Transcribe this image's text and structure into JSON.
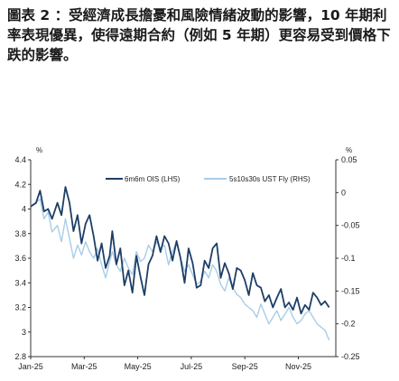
{
  "caption": "圖表 2 ：受經濟成長擔憂和風險情緒波動的影響，10 年期利率表現優異，使得遠期合約（例如 5 年期）更容易受到價格下跌的影響。",
  "chart_data": {
    "type": "line",
    "title": "",
    "left_unit": "%",
    "right_unit": "%",
    "left_axis": {
      "min": 2.8,
      "max": 4.4,
      "ticks": [
        "2.8",
        "3",
        "3.2",
        "3.4",
        "3.6",
        "3.8",
        "4",
        "4.2",
        "4.4"
      ]
    },
    "right_axis": {
      "min": -0.25,
      "max": 0.05,
      "ticks": [
        "0.05",
        "0",
        "-0.05",
        "-0.1",
        "-0.15",
        "-0.2",
        "-0.25"
      ]
    },
    "x_ticks": [
      "Jan-25",
      "Mar-25",
      "May-25",
      "Jul-25",
      "Sep-25",
      "Nov-25"
    ],
    "x_tick_positions": [
      0,
      2,
      4,
      6,
      8,
      10
    ],
    "x_range": [
      0,
      11.4
    ],
    "colors": {
      "ois": "#1d3f66",
      "fly": "#a9cde6"
    },
    "series": [
      {
        "name": "6m6m OIS (LHS)",
        "axis": "left",
        "x": [
          0,
          0.2,
          0.35,
          0.5,
          0.65,
          0.8,
          1.0,
          1.15,
          1.3,
          1.45,
          1.6,
          1.75,
          1.9,
          2.05,
          2.2,
          2.35,
          2.5,
          2.65,
          2.8,
          2.95,
          3.05,
          3.2,
          3.35,
          3.5,
          3.65,
          3.8,
          3.95,
          4.1,
          4.25,
          4.4,
          4.55,
          4.7,
          4.85,
          5.0,
          5.15,
          5.3,
          5.45,
          5.6,
          5.75,
          5.9,
          6.05,
          6.2,
          6.35,
          6.5,
          6.65,
          6.8,
          6.95,
          7.1,
          7.25,
          7.4,
          7.55,
          7.7,
          7.85,
          8.0,
          8.15,
          8.3,
          8.45,
          8.6,
          8.75,
          8.9,
          9.05,
          9.2,
          9.35,
          9.5,
          9.65,
          9.8,
          9.95,
          10.1,
          10.25,
          10.4,
          10.55,
          10.7,
          10.85,
          11.0,
          11.15
        ],
        "values": [
          4.02,
          4.05,
          4.15,
          3.98,
          4.0,
          3.92,
          4.05,
          3.95,
          4.18,
          4.05,
          3.82,
          3.95,
          3.72,
          3.88,
          3.95,
          3.78,
          3.58,
          3.72,
          3.52,
          3.62,
          3.82,
          3.55,
          3.68,
          3.38,
          3.5,
          3.32,
          3.62,
          3.45,
          3.3,
          3.55,
          3.62,
          3.78,
          3.65,
          3.78,
          3.72,
          3.58,
          3.74,
          3.6,
          3.4,
          3.68,
          3.56,
          3.36,
          3.38,
          3.58,
          3.52,
          3.68,
          3.72,
          3.44,
          3.56,
          3.48,
          3.35,
          3.52,
          3.5,
          3.42,
          3.3,
          3.48,
          3.38,
          3.36,
          3.25,
          3.3,
          3.2,
          3.28,
          3.35,
          3.2,
          3.24,
          3.18,
          3.28,
          3.15,
          3.22,
          3.18,
          3.32,
          3.28,
          3.22,
          3.25,
          3.2
        ]
      },
      {
        "name": "5s10s30s UST Fly (RHS)",
        "axis": "right",
        "x": [
          0,
          0.2,
          0.35,
          0.5,
          0.65,
          0.8,
          1.0,
          1.15,
          1.3,
          1.45,
          1.6,
          1.75,
          1.9,
          2.05,
          2.2,
          2.35,
          2.5,
          2.65,
          2.8,
          2.95,
          3.05,
          3.2,
          3.35,
          3.5,
          3.65,
          3.8,
          3.95,
          4.1,
          4.25,
          4.4,
          4.55,
          4.7,
          4.85,
          5.0,
          5.15,
          5.3,
          5.45,
          5.6,
          5.75,
          5.9,
          6.05,
          6.2,
          6.35,
          6.5,
          6.65,
          6.8,
          6.95,
          7.1,
          7.25,
          7.4,
          7.55,
          7.7,
          7.85,
          8.0,
          8.15,
          8.3,
          8.45,
          8.6,
          8.75,
          8.9,
          9.05,
          9.2,
          9.35,
          9.5,
          9.65,
          9.8,
          9.95,
          10.1,
          10.25,
          10.4,
          10.55,
          10.7,
          10.85,
          11.0,
          11.15
        ],
        "values": [
          -0.02,
          -0.015,
          -0.01,
          -0.04,
          -0.03,
          -0.06,
          -0.05,
          -0.075,
          -0.04,
          -0.07,
          -0.1,
          -0.08,
          -0.095,
          -0.075,
          -0.09,
          -0.1,
          -0.085,
          -0.11,
          -0.13,
          -0.105,
          -0.09,
          -0.11,
          -0.12,
          -0.1,
          -0.115,
          -0.125,
          -0.09,
          -0.105,
          -0.1,
          -0.08,
          -0.09,
          -0.075,
          -0.085,
          -0.08,
          -0.11,
          -0.09,
          -0.075,
          -0.1,
          -0.12,
          -0.11,
          -0.125,
          -0.14,
          -0.135,
          -0.12,
          -0.13,
          -0.11,
          -0.12,
          -0.14,
          -0.15,
          -0.13,
          -0.145,
          -0.155,
          -0.16,
          -0.17,
          -0.175,
          -0.18,
          -0.19,
          -0.17,
          -0.185,
          -0.2,
          -0.19,
          -0.18,
          -0.195,
          -0.185,
          -0.175,
          -0.19,
          -0.2,
          -0.195,
          -0.185,
          -0.18,
          -0.19,
          -0.2,
          -0.205,
          -0.21,
          -0.225
        ]
      }
    ]
  }
}
